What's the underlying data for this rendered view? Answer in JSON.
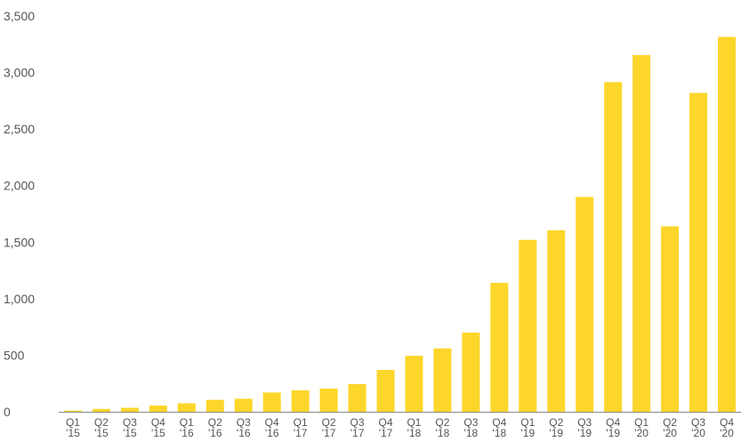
{
  "chart_data": {
    "type": "bar",
    "categories": [
      [
        "Q1",
        "'15"
      ],
      [
        "Q2",
        "'15"
      ],
      [
        "Q3",
        "'15"
      ],
      [
        "Q4",
        "'15"
      ],
      [
        "Q1",
        "'16"
      ],
      [
        "Q2",
        "'16"
      ],
      [
        "Q3",
        "'16"
      ],
      [
        "Q4",
        "'16"
      ],
      [
        "Q1",
        "'17"
      ],
      [
        "Q2",
        "'17"
      ],
      [
        "Q3",
        "'17"
      ],
      [
        "Q4",
        "'17"
      ],
      [
        "Q1",
        "'18"
      ],
      [
        "Q2",
        "'18"
      ],
      [
        "Q3",
        "'18"
      ],
      [
        "Q4",
        "'18"
      ],
      [
        "Q1",
        "'19"
      ],
      [
        "Q2",
        "'19"
      ],
      [
        "Q3",
        "'19"
      ],
      [
        "Q4",
        "'19"
      ],
      [
        "Q1",
        "'20"
      ],
      [
        "Q2",
        "'20"
      ],
      [
        "Q3",
        "'20"
      ],
      [
        "Q4",
        "'20"
      ]
    ],
    "values": [
      10,
      25,
      35,
      55,
      75,
      105,
      115,
      170,
      190,
      205,
      245,
      370,
      495,
      560,
      700,
      1140,
      1520,
      1605,
      1900,
      2915,
      3155,
      1640,
      2820,
      3315
    ],
    "ylim": [
      0,
      3500
    ],
    "yticks": [
      0,
      500,
      1000,
      1500,
      2000,
      2500,
      3000,
      3500
    ],
    "ytick_labels": [
      "0",
      "500",
      "1,000",
      "1,500",
      "2,000",
      "2,500",
      "3,000",
      "3,500"
    ],
    "title": "",
    "xlabel": "",
    "ylabel": "",
    "grid": false,
    "bar_color": "#fcd62a",
    "axis_color": "#888888"
  }
}
